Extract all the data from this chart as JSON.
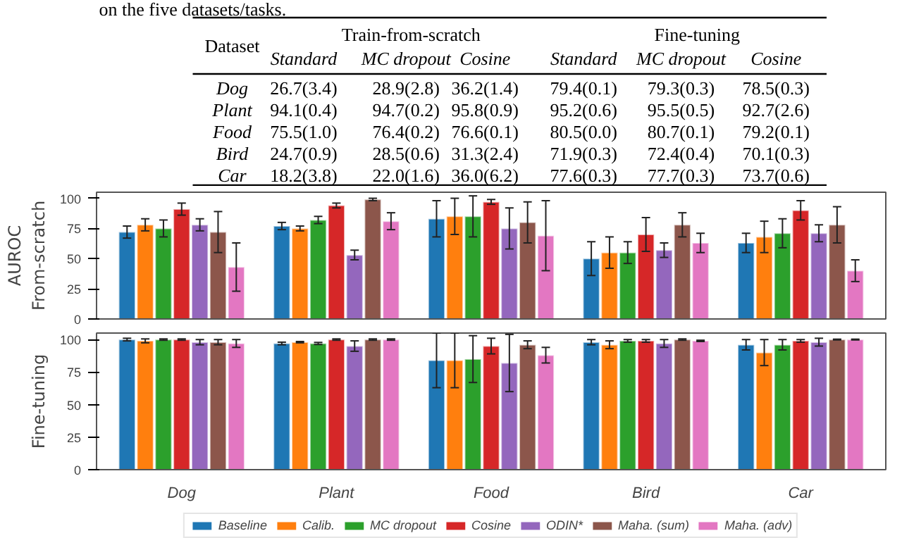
{
  "chart_data": [
    {
      "type": "other",
      "title": "on the five datasets/tasks.",
      "annotations": [
        "Train-from-scratch",
        "Fine-tuning",
        "Dataset",
        "Standard",
        "MC dropout",
        "Cosine",
        "Standard",
        "MC dropout",
        "Cosine",
        "Dog",
        "26.7(3.4)",
        "28.9(2.8)",
        "36.2(1.4)",
        "79.4(0.1)",
        "79.3(0.3)",
        "78.5(0.3)",
        "Plant",
        "94.1(0.4)",
        "94.7(0.2)",
        "95.8(0.9)",
        "95.2(0.6)",
        "95.5(0.5)",
        "92.7(2.6)",
        "Food",
        "75.5(1.0)",
        "76.4(0.2)",
        "76.6(0.1)",
        "80.5(0.0)",
        "80.7(0.1)",
        "79.2(0.1)",
        "Bird",
        "24.7(0.9)",
        "28.5(0.6)",
        "31.3(2.4)",
        "71.9(0.3)",
        "72.4(0.4)",
        "70.1(0.3)",
        "Car",
        "18.2(3.8)",
        "22.0(1.6)",
        "36.0(6.2)",
        "77.6(0.3)",
        "77.7(0.3)",
        "73.7(0.6)"
      ]
    },
    {
      "type": "bar",
      "ylabel": "From-scratch",
      "annotations": [
        "AUROC"
      ],
      "categories": [
        null,
        null,
        null,
        null,
        null
      ],
      "tick_labels": "y",
      "ylim": [
        0,
        105
      ],
      "yticks": [
        0,
        25,
        50,
        75,
        100
      ],
      "grid": false,
      "series": [
        {
          "color": "#1f77b4",
          "values": [
            72,
            77,
            83,
            50,
            63
          ],
          "errors": [
            5,
            3,
            15,
            14,
            8
          ]
        },
        {
          "color": "#ff7f0e",
          "values": [
            78,
            75,
            85,
            55,
            68
          ],
          "errors": [
            5,
            2,
            15,
            13,
            13
          ]
        },
        {
          "color": "#2ca02c",
          "values": [
            75,
            82,
            85,
            55,
            71
          ],
          "errors": [
            7,
            3,
            17,
            9,
            12
          ]
        },
        {
          "color": "#d62728",
          "values": [
            91,
            94,
            97,
            70,
            90
          ],
          "errors": [
            5,
            2,
            2,
            14,
            8
          ]
        },
        {
          "color": "#9467bd",
          "values": [
            78,
            53,
            75,
            57,
            71
          ],
          "errors": [
            5,
            4,
            17,
            6,
            7
          ]
        },
        {
          "color": "#8c564b",
          "values": [
            72,
            99,
            80,
            78,
            78
          ],
          "errors": [
            17,
            1,
            17,
            10,
            15
          ]
        },
        {
          "color": "#e377c2",
          "values": [
            43,
            81,
            69,
            63,
            40
          ],
          "errors": [
            20,
            7,
            29,
            8,
            9
          ]
        }
      ]
    },
    {
      "type": "bar",
      "ylabel": "Fine-tuning",
      "categories": [
        "Dog",
        "Plant",
        "Food",
        "Bird",
        "Car"
      ],
      "legend": "bottom",
      "ylim": [
        0,
        105
      ],
      "yticks": [
        0,
        25,
        50,
        75,
        100
      ],
      "grid": false,
      "series": [
        {
          "name": "Baseline",
          "color": "#1f77b4",
          "values": [
            100,
            97,
            84,
            98,
            96
          ],
          "errors": [
            1,
            1,
            21,
            2,
            4
          ]
        },
        {
          "name": "Calib.",
          "color": "#ff7f0e",
          "values": [
            99,
            98,
            84,
            96,
            90
          ],
          "errors": [
            1.5,
            0.5,
            21,
            3,
            10
          ]
        },
        {
          "name": "MC dropout",
          "color": "#2ca02c",
          "values": [
            100,
            97,
            85,
            99,
            96
          ],
          "errors": [
            0.5,
            0.8,
            18,
            1,
            4
          ]
        },
        {
          "name": "Cosine",
          "color": "#d62728",
          "values": [
            100,
            100,
            95,
            99,
            99
          ],
          "errors": [
            0.5,
            0.5,
            6,
            1,
            1
          ]
        },
        {
          "name": "ODIN*",
          "color": "#9467bd",
          "values": [
            98,
            95,
            82,
            97,
            98
          ],
          "errors": [
            2,
            4,
            22,
            3,
            3
          ]
        },
        {
          "name": "Maha. (sum)",
          "color": "#8c564b",
          "values": [
            98,
            100,
            96,
            100,
            100
          ],
          "errors": [
            2,
            0.5,
            3,
            0.5,
            0.3
          ]
        },
        {
          "name": "Maha. (adv)",
          "color": "#e377c2",
          "values": [
            97,
            100,
            88,
            99,
            100
          ],
          "errors": [
            3,
            0.5,
            6,
            0.5,
            0.3
          ]
        }
      ]
    }
  ]
}
